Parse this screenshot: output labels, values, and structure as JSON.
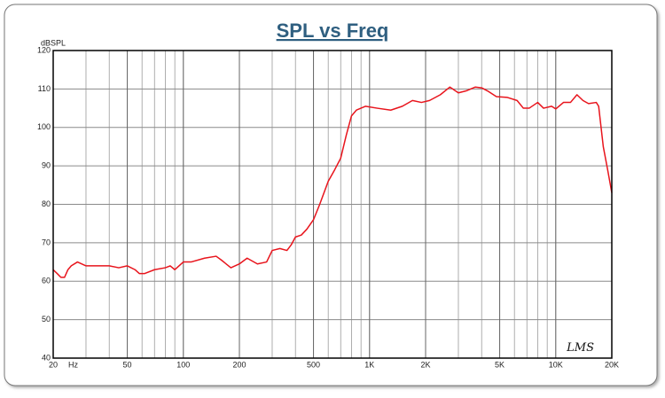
{
  "chart_data": {
    "type": "line",
    "title": "SPL vs Freq",
    "y_label": "dBSPL",
    "x_label": "Hz",
    "logo": "LMS",
    "x_log_scale": true,
    "grid": true,
    "minor_grid": true,
    "xlim": [
      20,
      20000
    ],
    "ylim": [
      40,
      120
    ],
    "yticks": [
      40,
      50,
      60,
      70,
      80,
      90,
      100,
      110,
      120
    ],
    "xticks": [
      20,
      50,
      100,
      200,
      500,
      {
        "value": 1000,
        "label": "1K"
      },
      {
        "value": 2000,
        "label": "2K"
      },
      {
        "value": 5000,
        "label": "5K"
      },
      {
        "value": 10000,
        "label": "10K"
      },
      {
        "value": 20000,
        "label": "20K"
      }
    ],
    "series": [
      {
        "color": "#e8141c",
        "x": [
          20,
          21,
          22,
          23,
          24,
          25,
          27,
          30,
          35,
          40,
          45,
          50,
          55,
          58,
          62,
          70,
          80,
          85,
          90,
          100,
          110,
          130,
          150,
          160,
          180,
          200,
          220,
          250,
          280,
          300,
          330,
          360,
          380,
          400,
          430,
          460,
          500,
          540,
          600,
          650,
          700,
          750,
          800,
          850,
          950,
          1100,
          1300,
          1500,
          1700,
          1900,
          2100,
          2400,
          2700,
          3000,
          3300,
          3700,
          4000,
          4300,
          4800,
          5500,
          6200,
          6700,
          7200,
          8000,
          8600,
          9500,
          10000,
          11000,
          12000,
          13000,
          14000,
          15000,
          16500,
          17000,
          18000,
          19000,
          20000
        ],
        "values": [
          63,
          62,
          61,
          61,
          63,
          64,
          65,
          64,
          64,
          64,
          63.5,
          64,
          63,
          62,
          62,
          63,
          63.5,
          64,
          63,
          65,
          65,
          66,
          66.5,
          65.5,
          63.5,
          64.5,
          66,
          64.5,
          65,
          68,
          68.5,
          68,
          69.5,
          71.5,
          72,
          73.5,
          76,
          80,
          86,
          89,
          92,
          98,
          103,
          104.5,
          105.5,
          105,
          104.5,
          105.5,
          107,
          106.5,
          107,
          108.5,
          110.5,
          109,
          109.5,
          110.5,
          110.3,
          109.5,
          108,
          107.8,
          107,
          105,
          105,
          106.5,
          105,
          105.5,
          104.8,
          106.5,
          106.5,
          108.5,
          107,
          106.2,
          106.5,
          105.5,
          95,
          89,
          83
        ]
      }
    ]
  }
}
